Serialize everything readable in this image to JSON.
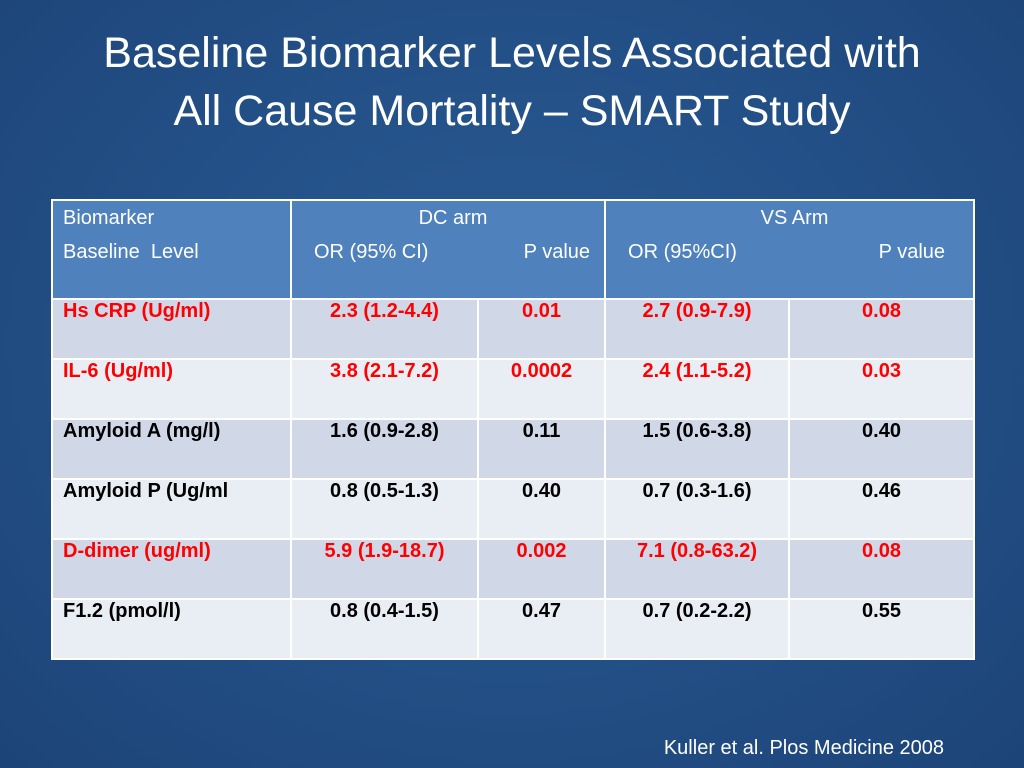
{
  "title": {
    "line1": "Baseline Biomarker Levels Associated with",
    "line2": "All Cause Mortality – SMART Study"
  },
  "table": {
    "header": {
      "col1_line1": "Biomarker",
      "col1_line2": "Baseline  Level",
      "dc_arm": "DC arm",
      "dc_or": "OR (95% CI)",
      "dc_p": "P value",
      "vs_arm": "VS Arm",
      "vs_or": "OR (95%CI)",
      "vs_p": "P value"
    },
    "rows": [
      {
        "biomarker": "Hs CRP (Ug/ml)",
        "dc_or": "2.3  (1.2-4.4)",
        "dc_p": "0.01",
        "vs_or": "2.7 (0.9-7.9)",
        "vs_p": "0.08",
        "highlight": true
      },
      {
        "biomarker": "IL-6 (Ug/ml)",
        "dc_or": "3.8 (2.1-7.2)",
        "dc_p": "0.0002",
        "vs_or": "2.4 (1.1-5.2)",
        "vs_p": "0.03",
        "highlight": true
      },
      {
        "biomarker": "Amyloid A (mg/l)",
        "dc_or": "1.6 (0.9-2.8)",
        "dc_p": "0.11",
        "vs_or": "1.5 (0.6-3.8)",
        "vs_p": "0.40",
        "highlight": false
      },
      {
        "biomarker": "Amyloid P (Ug/ml",
        "dc_or": "0.8 (0.5-1.3)",
        "dc_p": "0.40",
        "vs_or": "0.7 (0.3-1.6)",
        "vs_p": "0.46",
        "highlight": false
      },
      {
        "biomarker": "D-dimer (ug/ml)",
        "dc_or": "5.9 (1.9-18.7)",
        "dc_p": "0.002",
        "vs_or": "7.1 (0.8-63.2)",
        "vs_p": "0.08",
        "highlight": true
      },
      {
        "biomarker": "F1.2 (pmol/l)",
        "dc_or": "0.8 (0.4-1.5)",
        "dc_p": "0.47",
        "vs_or": "0.7 (0.2-2.2)",
        "vs_p": "0.55",
        "highlight": false
      }
    ]
  },
  "citation": "Kuller et al. Plos Medicine 2008",
  "colors": {
    "background": "#224f86",
    "header_fill": "#4f81bd",
    "row_odd": "#d0d8e8",
    "row_even": "#e9edf4",
    "highlight_text": "#ff0000",
    "title_text": "#ffffff"
  }
}
